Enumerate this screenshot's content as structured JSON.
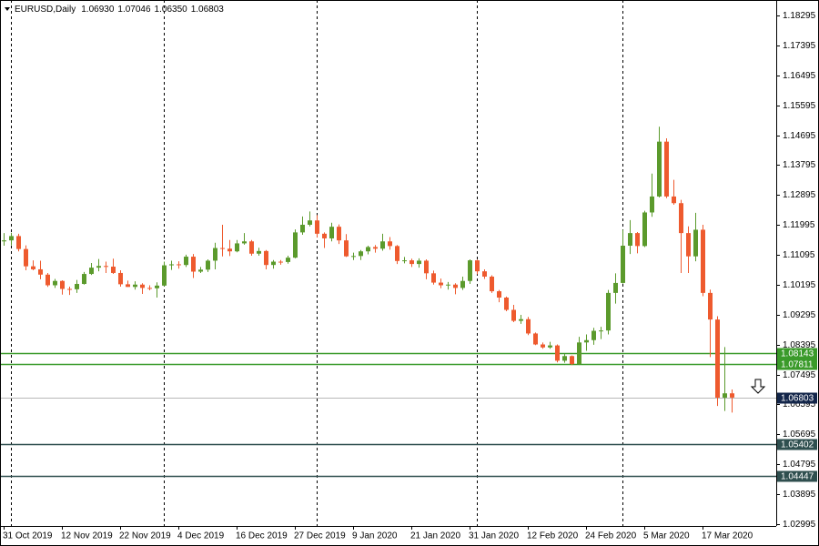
{
  "chart_data": {
    "type": "candlestick",
    "title": "EURUSD,Daily",
    "ohlc_text": [
      "1.06930",
      "1.07046",
      "1.06350",
      "1.06803"
    ],
    "categories": [
      "31 Oct 2019",
      null,
      null,
      null,
      null,
      null,
      null,
      null,
      "12 Nov 2019",
      null,
      null,
      null,
      null,
      null,
      null,
      null,
      "22 Nov 2019",
      null,
      null,
      null,
      null,
      null,
      null,
      null,
      "4 Dec 2019",
      null,
      null,
      null,
      null,
      null,
      null,
      null,
      "16 Dec 2019",
      null,
      null,
      null,
      null,
      null,
      null,
      null,
      "27 Dec 2019",
      null,
      null,
      null,
      null,
      null,
      null,
      null,
      "9 Jan 2020",
      null,
      null,
      null,
      null,
      null,
      null,
      null,
      "21 Jan 2020",
      null,
      null,
      null,
      null,
      null,
      null,
      null,
      "31 Jan 2020",
      null,
      null,
      null,
      null,
      null,
      null,
      null,
      "12 Feb 2020",
      null,
      null,
      null,
      null,
      null,
      null,
      null,
      "24 Feb 2020",
      null,
      null,
      null,
      null,
      null,
      null,
      null,
      "5 Mar 2020",
      null,
      null,
      null,
      null,
      null,
      null,
      null,
      "17 Mar 2020",
      null,
      null,
      null,
      null
    ],
    "open": [
      1.115,
      1.1153,
      1.1166,
      1.1127,
      1.1075,
      1.1066,
      1.105,
      1.1018,
      1.1031,
      1.1007,
      1.1006,
      1.1022,
      1.1052,
      1.1071,
      1.1076,
      1.1074,
      1.1055,
      1.1021,
      1.1013,
      1.102,
      1.101,
      1.1009,
      1.1017,
      1.1078,
      1.1081,
      1.1079,
      1.1104,
      1.1059,
      1.1065,
      1.1092,
      1.113,
      1.1128,
      1.112,
      1.1144,
      1.115,
      1.1113,
      1.1121,
      1.1079,
      1.1089,
      1.1088,
      1.1101,
      1.1177,
      1.12,
      1.1213,
      1.1173,
      1.1159,
      1.1194,
      1.1153,
      1.1105,
      1.1106,
      1.112,
      1.1133,
      1.1128,
      1.115,
      1.1136,
      1.1091,
      1.1093,
      1.1082,
      1.1092,
      1.1054,
      1.1026,
      1.1018,
      1.102,
      1.101,
      1.1031,
      1.1093,
      1.106,
      1.1044,
      1.1,
      1.0981,
      1.0944,
      1.0911,
      1.0916,
      1.0873,
      1.084,
      1.0831,
      1.0837,
      1.0791,
      1.0805,
      1.0781,
      1.0846,
      1.0853,
      1.0881,
      1.0882,
      1.0995,
      1.1025,
      1.1137,
      1.1175,
      1.1136,
      1.1237,
      1.1285,
      1.145,
      1.1285,
      1.1265,
      1.1175,
      1.1105,
      1.1185,
      1.0995,
      1.0915,
      1.068,
      1.0693
    ],
    "high": [
      1.1175,
      1.1176,
      1.1173,
      1.1138,
      1.1093,
      1.1092,
      1.1055,
      1.1037,
      1.1033,
      1.1014,
      1.1034,
      1.1058,
      1.1085,
      1.1097,
      1.1089,
      1.1098,
      1.1063,
      1.1032,
      1.103,
      1.1024,
      1.1018,
      1.1027,
      1.1089,
      1.1092,
      1.109,
      1.111,
      1.1112,
      1.1073,
      1.1096,
      1.1146,
      1.12,
      1.1154,
      1.1154,
      1.1175,
      1.1154,
      1.1131,
      1.1124,
      1.1094,
      1.1094,
      1.1107,
      1.1186,
      1.1225,
      1.124,
      1.1229,
      1.1177,
      1.1206,
      1.1201,
      1.1172,
      1.1116,
      1.1124,
      1.1137,
      1.1139,
      1.1173,
      1.1163,
      1.1139,
      1.1103,
      1.1098,
      1.1099,
      1.1096,
      1.1062,
      1.1038,
      1.1028,
      1.1024,
      1.1044,
      1.1096,
      1.1095,
      1.1066,
      1.1048,
      1.1004,
      1.0984,
      1.0959,
      1.0929,
      1.0923,
      1.0876,
      1.0846,
      1.0848,
      1.084,
      1.0812,
      1.0807,
      1.0863,
      1.087,
      1.089,
      1.0893,
      1.1004,
      1.1054,
      1.1185,
      1.1214,
      1.1178,
      1.1242,
      1.1354,
      1.1495,
      1.146,
      1.1335,
      1.1275,
      1.1195,
      1.1236,
      1.12,
      1.1005,
      1.0925,
      1.0832,
      1.07046
    ],
    "low": [
      1.1137,
      1.1138,
      1.112,
      1.1063,
      1.1063,
      1.1036,
      1.1013,
      1.101,
      1.099,
      1.0989,
      1.0995,
      1.102,
      1.1049,
      1.106,
      1.1055,
      1.1052,
      1.1014,
      1.1013,
      1.1005,
      1.0992,
      1.1003,
      1.0981,
      1.1015,
      1.1064,
      1.1068,
      1.1073,
      1.104,
      1.1055,
      1.1058,
      1.1066,
      1.1105,
      1.1106,
      1.1117,
      1.114,
      1.1107,
      1.1107,
      1.1066,
      1.1068,
      1.108,
      1.1083,
      1.1099,
      1.117,
      1.1195,
      1.1162,
      1.113,
      1.115,
      1.1142,
      1.1103,
      1.1094,
      1.1094,
      1.1111,
      1.1116,
      1.1122,
      1.1125,
      1.1082,
      1.1084,
      1.1073,
      1.1071,
      1.1036,
      1.102,
      1.1009,
      1.1005,
      1.0991,
      1.1004,
      1.1022,
      1.1051,
      1.1037,
      1.0995,
      1.0967,
      1.094,
      1.0907,
      1.0902,
      1.0868,
      1.0838,
      1.0827,
      1.0827,
      1.0786,
      1.0785,
      1.0778,
      1.0778,
      1.0821,
      1.0839,
      1.0856,
      1.087,
      1.0963,
      1.1023,
      1.1112,
      1.1114,
      1.1133,
      1.1224,
      1.1282,
      1.128,
      1.126,
      1.1055,
      1.1055,
      1.109,
      1.0985,
      1.0802,
      1.0655,
      1.064,
      1.0635
    ],
    "close": [
      1.1153,
      1.1166,
      1.1127,
      1.1075,
      1.1066,
      1.105,
      1.1018,
      1.1031,
      1.1007,
      1.1006,
      1.1022,
      1.1052,
      1.1071,
      1.1076,
      1.1074,
      1.1055,
      1.1021,
      1.1013,
      1.102,
      1.101,
      1.1009,
      1.1017,
      1.1078,
      1.1081,
      1.1079,
      1.1104,
      1.1059,
      1.1065,
      1.1092,
      1.113,
      1.1128,
      1.112,
      1.1144,
      1.115,
      1.1113,
      1.1121,
      1.1079,
      1.1089,
      1.1088,
      1.1101,
      1.1177,
      1.12,
      1.1213,
      1.1173,
      1.1159,
      1.1194,
      1.1153,
      1.1105,
      1.1106,
      1.112,
      1.1133,
      1.1128,
      1.115,
      1.1136,
      1.1091,
      1.1093,
      1.1082,
      1.1092,
      1.1054,
      1.1026,
      1.1018,
      1.102,
      1.101,
      1.1031,
      1.1093,
      1.106,
      1.1044,
      1.1,
      1.0981,
      1.0944,
      1.0911,
      1.0916,
      1.0873,
      1.084,
      1.0831,
      1.0837,
      1.0791,
      1.0805,
      1.0781,
      1.0846,
      1.0853,
      1.0881,
      1.0882,
      1.0995,
      1.1025,
      1.1137,
      1.1175,
      1.1136,
      1.1237,
      1.1285,
      1.145,
      1.1285,
      1.1265,
      1.1175,
      1.1105,
      1.1185,
      1.0995,
      1.0915,
      1.068,
      1.0693,
      1.06803
    ],
    "up_color": "#5b9a2c",
    "down_color": "#ee5a2e",
    "ylim": [
      1.0294,
      1.1876
    ],
    "yticks": [
      1.18295,
      1.17395,
      1.16495,
      1.15595,
      1.14695,
      1.13795,
      1.12895,
      1.11995,
      1.11095,
      1.10195,
      1.09295,
      1.08395,
      1.07495,
      1.06595,
      1.05695,
      1.04795,
      1.03895,
      1.02995
    ],
    "levels": [
      {
        "value": 1.08143,
        "line_color": "#3a9a2a",
        "box_color": "#3a9a2a"
      },
      {
        "value": 1.07811,
        "line_color": "#3a9a2a",
        "box_color": "#3a9a2a"
      },
      {
        "value": 1.06803,
        "line_color": "#b8b8b8",
        "box_color": "#13264a"
      },
      {
        "value": 1.05402,
        "line_color": "#2f4f4f",
        "box_color": "#2f4f4f"
      },
      {
        "value": 1.04447,
        "line_color": "#2f4f4f",
        "box_color": "#2f4f4f"
      }
    ]
  }
}
